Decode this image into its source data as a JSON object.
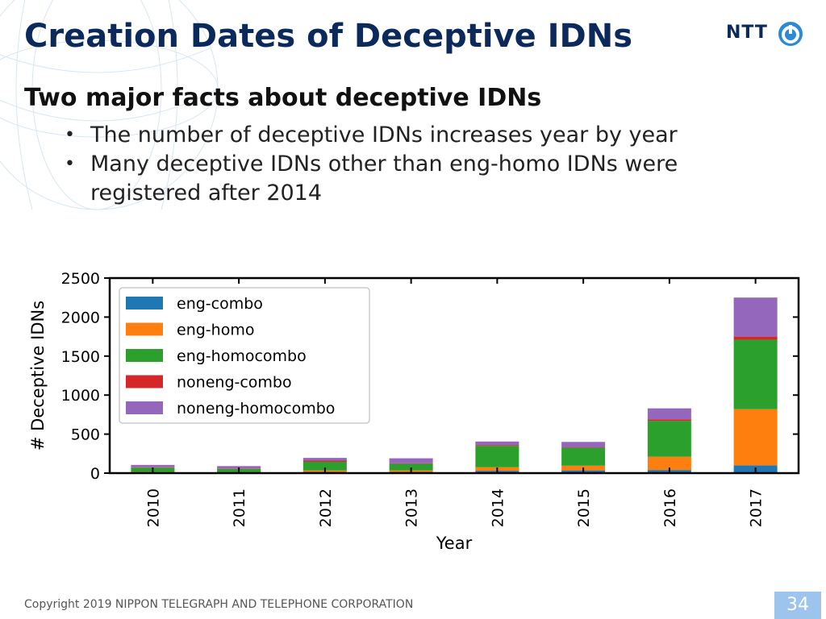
{
  "slide": {
    "title": "Creation Dates of Deceptive IDNs",
    "subheading": "Two major facts about deceptive IDNs",
    "bullets": [
      "The number of deceptive IDNs increases year by year",
      "Many deceptive IDNs other than eng-homo IDNs were registered after 2014"
    ],
    "footer": "Copyright 2019 NIPPON TELEGRAPH AND TELEPHONE CORPORATION",
    "page_number": "34",
    "logo_text": "NTT"
  },
  "colors": {
    "title": "#0b2a5b",
    "page_badge": "#9cc4ec"
  },
  "chart_data": {
    "type": "bar",
    "stacked": true,
    "xlabel": "Year",
    "ylabel": "# Deceptive IDNs",
    "ylim": [
      0,
      2500
    ],
    "yticks": [
      0,
      500,
      1000,
      1500,
      2000,
      2500
    ],
    "categories": [
      "2010",
      "2011",
      "2012",
      "2013",
      "2014",
      "2015",
      "2016",
      "2017"
    ],
    "legend_position": "top-left",
    "grid": false,
    "series": [
      {
        "name": "eng-combo",
        "color": "#1f77b4",
        "values": [
          5,
          5,
          15,
          15,
          30,
          35,
          40,
          100
        ]
      },
      {
        "name": "eng-homo",
        "color": "#ff7f0e",
        "values": [
          10,
          5,
          20,
          20,
          45,
          60,
          170,
          720
        ]
      },
      {
        "name": "eng-homocombo",
        "color": "#2ca02c",
        "values": [
          55,
          45,
          110,
          85,
          275,
          230,
          460,
          890
        ]
      },
      {
        "name": "noneng-combo",
        "color": "#d62728",
        "values": [
          5,
          5,
          15,
          5,
          10,
          5,
          20,
          40
        ]
      },
      {
        "name": "noneng-homocombo",
        "color": "#9467bd",
        "values": [
          30,
          30,
          35,
          65,
          45,
          70,
          140,
          500
        ]
      }
    ]
  }
}
